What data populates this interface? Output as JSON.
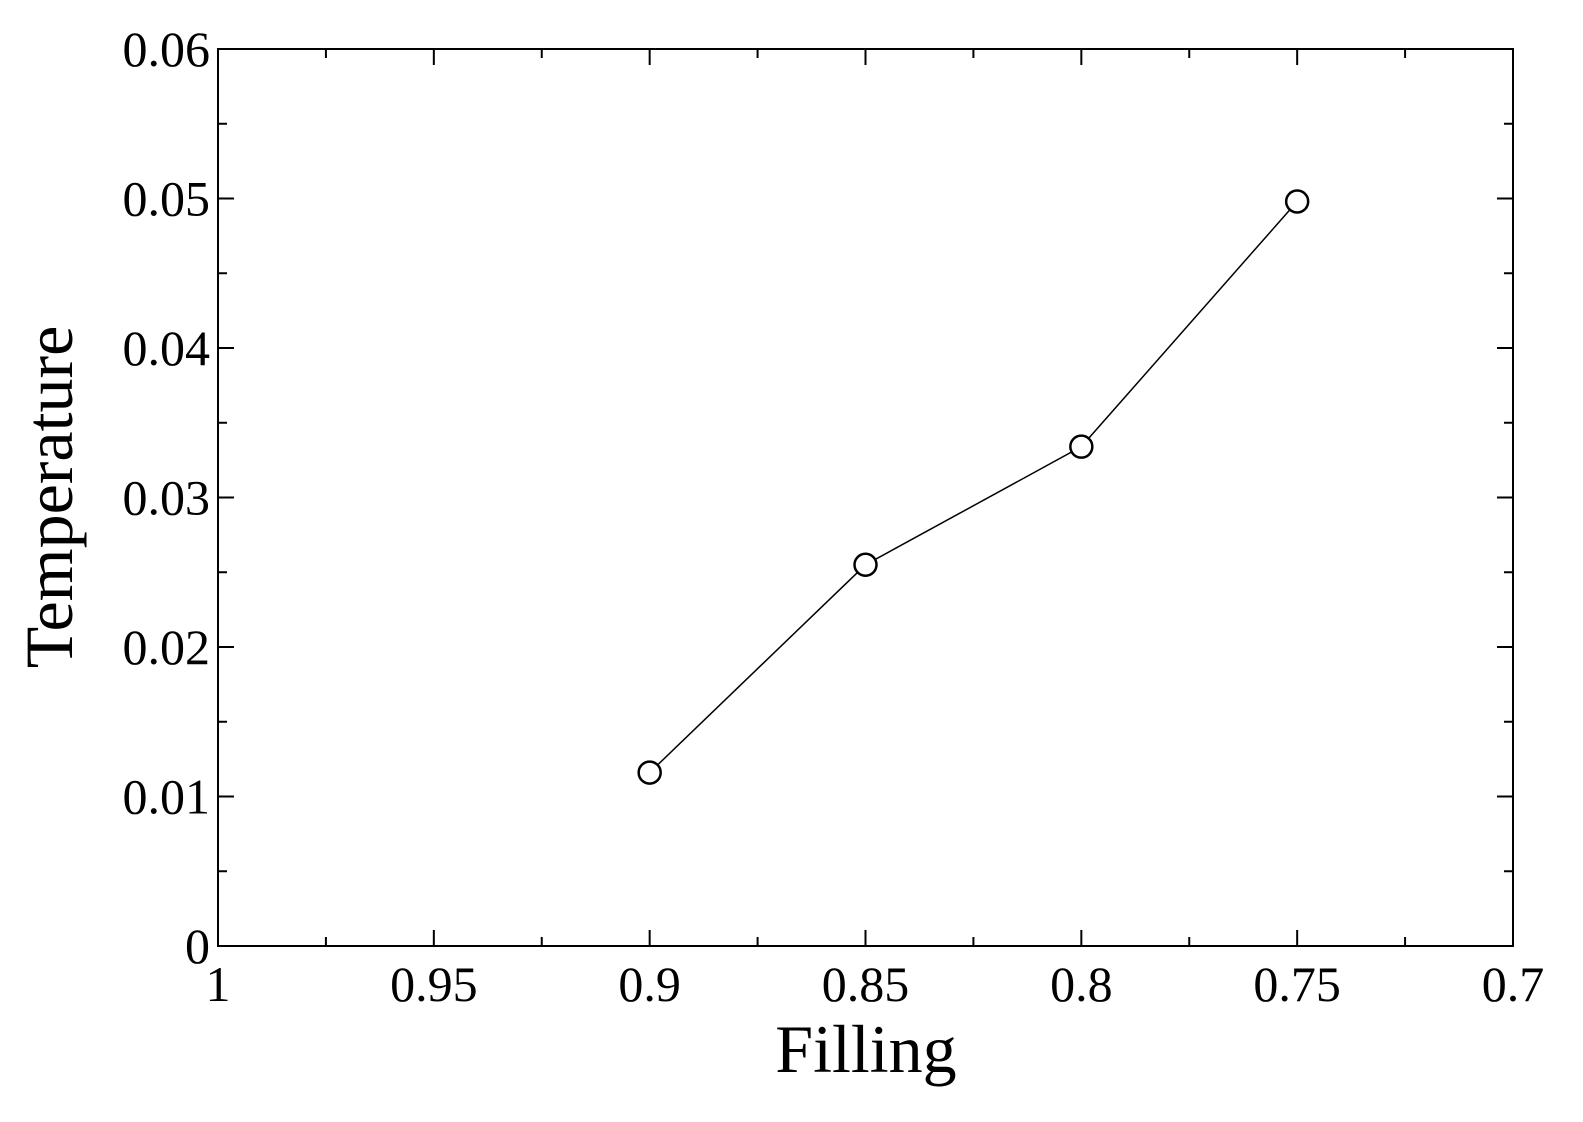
{
  "chart_data": {
    "type": "line",
    "x_label": "Filling",
    "y_label": "Temperature",
    "x": [
      0.9,
      0.85,
      0.8,
      0.75
    ],
    "series": [
      {
        "color": "#000000",
        "values": [
          0.0116,
          0.0255,
          0.0334,
          0.0498
        ]
      }
    ],
    "xlim": [
      1,
      0.7
    ],
    "xticks": [
      1,
      0.95,
      0.9,
      0.85,
      0.8,
      0.75,
      0.7
    ],
    "ylim": [
      0,
      0.06
    ],
    "yticks": [
      0,
      0.01,
      0.02,
      0.03,
      0.04,
      0.05,
      0.06
    ],
    "grid": false,
    "marker": "circle"
  }
}
